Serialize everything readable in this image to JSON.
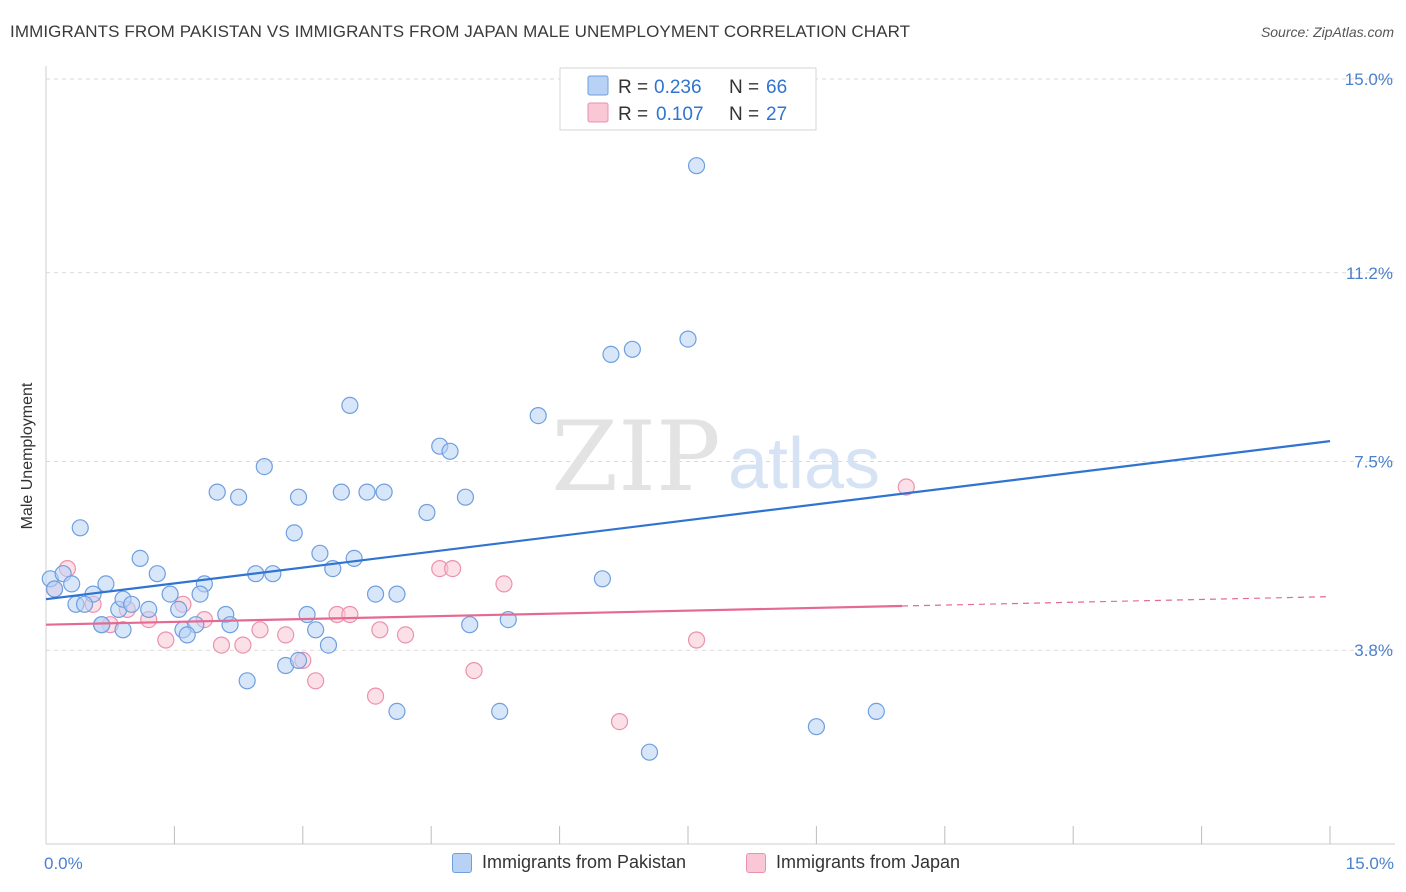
{
  "header": {
    "title": "IMMIGRANTS FROM PAKISTAN VS IMMIGRANTS FROM JAPAN MALE UNEMPLOYMENT CORRELATION CHART",
    "source": "Source: ZipAtlas.com"
  },
  "watermark": {
    "zip": "ZIP",
    "atlas": "atlas"
  },
  "colors": {
    "pakistan_fill": "#b8d2f5",
    "pakistan_stroke": "#6f9fde",
    "pakistan_line": "#2f74d0",
    "japan_fill": "#f9c7d6",
    "japan_stroke": "#ea92ad",
    "japan_line": "#e56a91",
    "tick_label": "#4a80cc",
    "grid": "#d9d9d9"
  },
  "legend_top": {
    "rows": [
      {
        "r_label": "R =",
        "r_value": "0.236",
        "n_label": "N =",
        "n_value": "66"
      },
      {
        "r_label": "R =",
        "r_value": "0.107",
        "n_label": "N =",
        "n_value": "27"
      }
    ]
  },
  "legend_bottom": {
    "items": [
      "Immigrants from Pakistan",
      "Immigrants from Japan"
    ]
  },
  "chart_data": {
    "type": "scatter",
    "title": "IMMIGRANTS FROM PAKISTAN VS IMMIGRANTS FROM JAPAN MALE UNEMPLOYMENT CORRELATION CHART",
    "xlabel": "",
    "ylabel": "Male Unemployment",
    "xlim": [
      0,
      15
    ],
    "ylim": [
      0,
      15.5
    ],
    "x_tick_labels": [
      "0.0%",
      "15.0%"
    ],
    "y_ticks": [
      3.8,
      7.5,
      11.2,
      15.0
    ],
    "y_tick_labels": [
      "3.8%",
      "7.5%",
      "11.2%",
      "15.0%"
    ],
    "grid": "horizontal dashed",
    "legend_position": "top-center",
    "series": [
      {
        "name": "Immigrants from Pakistan",
        "trend": {
          "x": [
            0,
            15
          ],
          "y": [
            4.8,
            7.9
          ],
          "dashed_from": null
        },
        "points": [
          [
            0.05,
            5.2
          ],
          [
            0.1,
            5.0
          ],
          [
            0.2,
            5.3
          ],
          [
            0.3,
            5.1
          ],
          [
            0.4,
            6.2
          ],
          [
            0.35,
            4.7
          ],
          [
            0.55,
            4.9
          ],
          [
            0.7,
            5.1
          ],
          [
            0.65,
            4.3
          ],
          [
            0.85,
            4.6
          ],
          [
            0.9,
            4.8
          ],
          [
            1.1,
            5.6
          ],
          [
            1.2,
            4.6
          ],
          [
            1.3,
            5.3
          ],
          [
            1.45,
            4.9
          ],
          [
            1.55,
            4.6
          ],
          [
            1.6,
            4.2
          ],
          [
            1.75,
            4.3
          ],
          [
            1.85,
            5.1
          ],
          [
            1.8,
            4.9
          ],
          [
            2.0,
            6.9
          ],
          [
            2.1,
            4.5
          ],
          [
            2.25,
            6.8
          ],
          [
            2.35,
            3.2
          ],
          [
            2.45,
            5.3
          ],
          [
            2.55,
            7.4
          ],
          [
            2.65,
            5.3
          ],
          [
            2.8,
            3.5
          ],
          [
            2.9,
            6.1
          ],
          [
            2.95,
            6.8
          ],
          [
            3.05,
            4.5
          ],
          [
            3.15,
            4.2
          ],
          [
            3.2,
            5.7
          ],
          [
            3.35,
            5.4
          ],
          [
            3.45,
            6.9
          ],
          [
            3.55,
            8.6
          ],
          [
            3.6,
            5.6
          ],
          [
            3.75,
            6.9
          ],
          [
            3.85,
            4.9
          ],
          [
            3.95,
            6.9
          ],
          [
            4.1,
            2.6
          ],
          [
            4.1,
            4.9
          ],
          [
            4.45,
            6.5
          ],
          [
            4.6,
            7.8
          ],
          [
            4.72,
            7.7
          ],
          [
            4.9,
            6.8
          ],
          [
            4.95,
            4.3
          ],
          [
            5.3,
            2.6
          ],
          [
            5.4,
            4.4
          ],
          [
            5.75,
            8.4
          ],
          [
            6.5,
            5.2
          ],
          [
            6.6,
            9.6
          ],
          [
            6.85,
            9.7
          ],
          [
            7.05,
            1.8
          ],
          [
            7.5,
            9.9
          ],
          [
            7.6,
            13.3
          ],
          [
            9.0,
            2.3
          ],
          [
            9.7,
            2.6
          ],
          [
            0.65,
            4.3
          ],
          [
            0.9,
            4.2
          ],
          [
            1.65,
            4.1
          ],
          [
            2.15,
            4.3
          ],
          [
            2.95,
            3.6
          ],
          [
            3.3,
            3.9
          ],
          [
            0.45,
            4.7
          ],
          [
            1.0,
            4.7
          ]
        ]
      },
      {
        "name": "Immigrants from Japan",
        "trend": {
          "x": [
            0,
            15
          ],
          "y": [
            4.3,
            4.85
          ],
          "dashed_from": 10.0
        },
        "points": [
          [
            0.1,
            5.0
          ],
          [
            0.25,
            5.4
          ],
          [
            0.55,
            4.7
          ],
          [
            0.75,
            4.3
          ],
          [
            0.95,
            4.6
          ],
          [
            1.2,
            4.4
          ],
          [
            1.4,
            4.0
          ],
          [
            1.6,
            4.7
          ],
          [
            1.85,
            4.4
          ],
          [
            2.05,
            3.9
          ],
          [
            2.3,
            3.9
          ],
          [
            2.5,
            4.2
          ],
          [
            2.8,
            4.1
          ],
          [
            3.0,
            3.6
          ],
          [
            3.15,
            3.2
          ],
          [
            3.4,
            4.5
          ],
          [
            3.55,
            4.5
          ],
          [
            3.85,
            2.9
          ],
          [
            3.9,
            4.2
          ],
          [
            4.2,
            4.1
          ],
          [
            4.6,
            5.4
          ],
          [
            4.75,
            5.4
          ],
          [
            5.0,
            3.4
          ],
          [
            5.35,
            5.1
          ],
          [
            6.7,
            2.4
          ],
          [
            7.6,
            4.0
          ],
          [
            10.05,
            7.0
          ]
        ]
      }
    ]
  }
}
